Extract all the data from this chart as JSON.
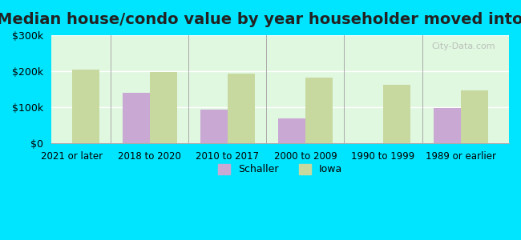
{
  "title": "Median house/condo value by year householder moved into unit",
  "categories": [
    "2021 or later",
    "2018 to 2020",
    "2010 to 2017",
    "2000 to 2009",
    "1990 to 1999",
    "1989 or earlier"
  ],
  "schaller": [
    null,
    140000,
    93000,
    70000,
    null,
    98000
  ],
  "iowa": [
    205000,
    198000,
    193000,
    183000,
    163000,
    148000
  ],
  "schaller_color": "#c9a8d4",
  "iowa_color": "#c8d9a0",
  "background_color": "#e0f7e0",
  "ylim": [
    0,
    300000
  ],
  "yticks": [
    0,
    100000,
    200000,
    300000
  ],
  "ytick_labels": [
    "$0",
    "$100k",
    "$200k",
    "$300k"
  ],
  "title_fontsize": 14,
  "outer_bg": "#00e5ff",
  "watermark": "City-Data.com"
}
